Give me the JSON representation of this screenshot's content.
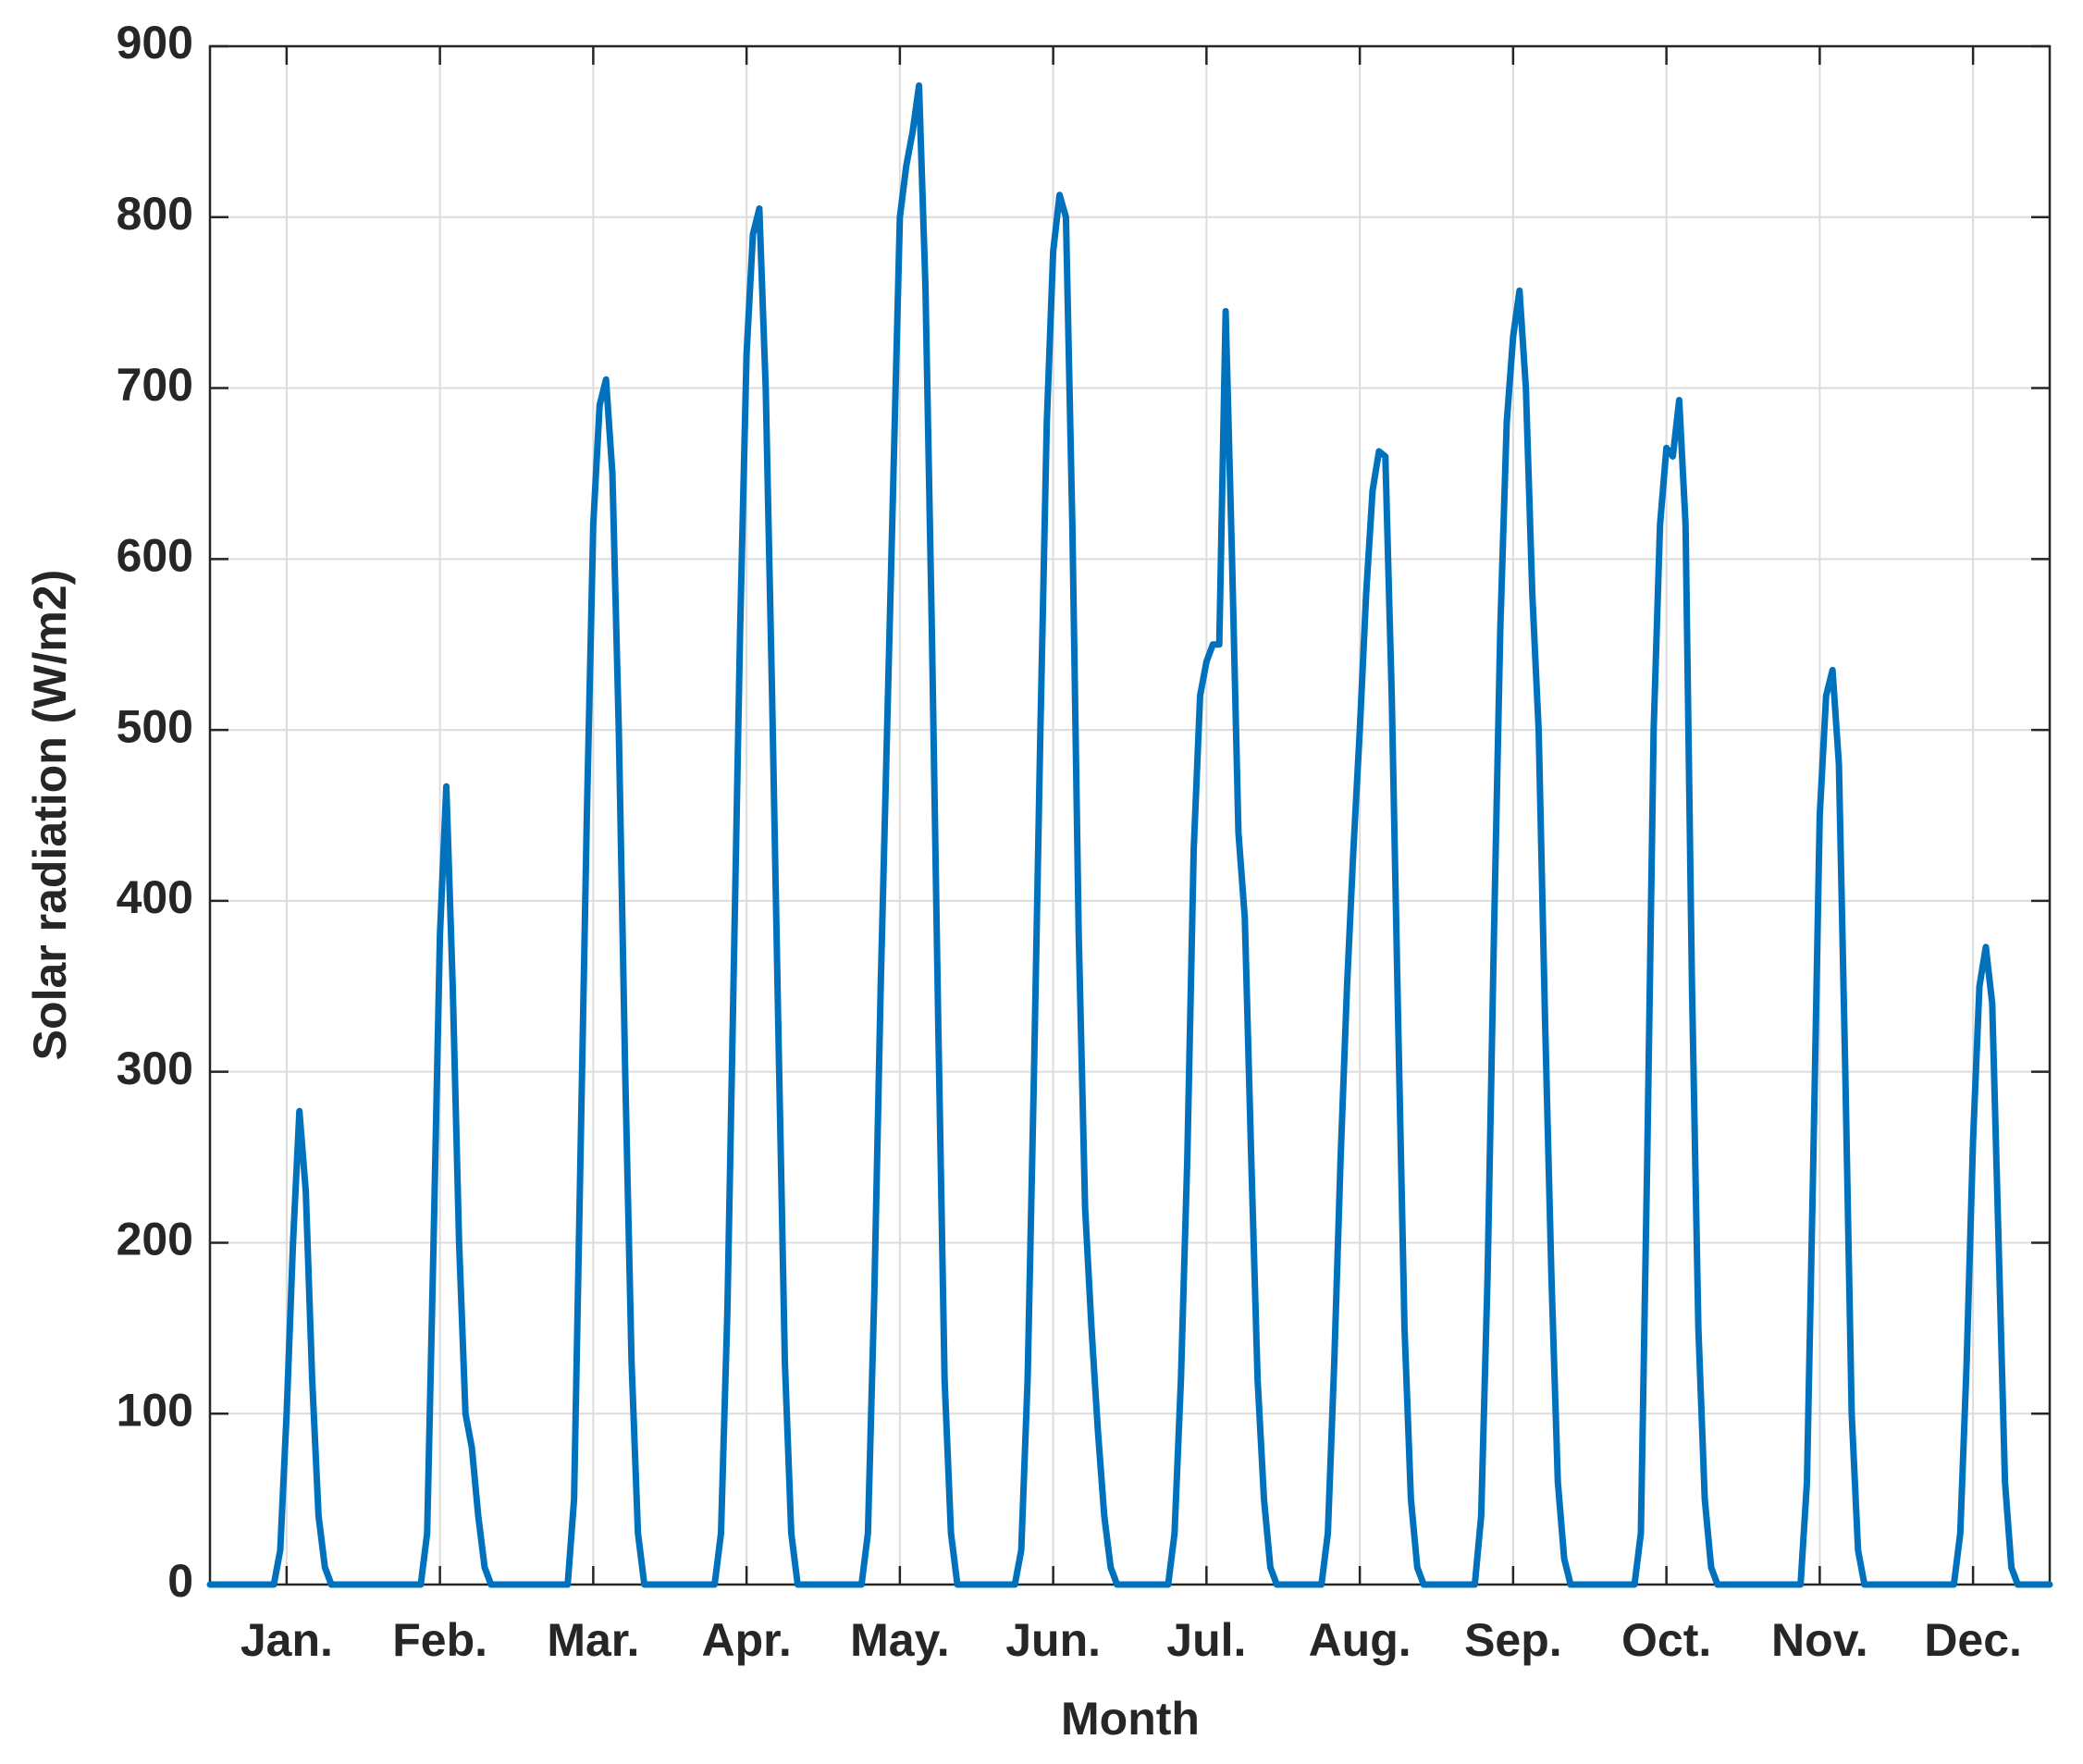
{
  "chart_data": {
    "type": "line",
    "xlabel": "Month",
    "ylabel": "Solar radiation (W/m2)",
    "color": "#0072bd",
    "grid": true,
    "xlim": [
      0,
      288
    ],
    "ylim": [
      0,
      900
    ],
    "yticks": [
      0,
      100,
      200,
      300,
      400,
      500,
      600,
      700,
      800,
      900
    ],
    "xticks": [
      {
        "value": 12,
        "label": "Jan."
      },
      {
        "value": 36,
        "label": "Feb."
      },
      {
        "value": 60,
        "label": "Mar."
      },
      {
        "value": 84,
        "label": "Apr."
      },
      {
        "value": 108,
        "label": "May."
      },
      {
        "value": 132,
        "label": "Jun."
      },
      {
        "value": 156,
        "label": "Jul."
      },
      {
        "value": 180,
        "label": "Aug."
      },
      {
        "value": 204,
        "label": "Sep."
      },
      {
        "value": 228,
        "label": "Oct."
      },
      {
        "value": 252,
        "label": "Nov."
      },
      {
        "value": 276,
        "label": "Dec."
      }
    ],
    "x": [
      0,
      10,
      11,
      12,
      13,
      14,
      15,
      16,
      17,
      18,
      19,
      33,
      34,
      35,
      36,
      37,
      38,
      39,
      40,
      41,
      42,
      43,
      44,
      56,
      57,
      58,
      59,
      60,
      61,
      62,
      63,
      64,
      65,
      66,
      67,
      68,
      79,
      80,
      81,
      82,
      83,
      84,
      85,
      86,
      87,
      88,
      89,
      90,
      91,
      92,
      102,
      103,
      104,
      105,
      106,
      107,
      108,
      109,
      110,
      111,
      112,
      113,
      114,
      115,
      116,
      117,
      126,
      127,
      128,
      129,
      130,
      131,
      132,
      133,
      134,
      135,
      136,
      137,
      138,
      139,
      140,
      141,
      142,
      150,
      151,
      152,
      153,
      154,
      155,
      156,
      157,
      158,
      159,
      160,
      161,
      162,
      163,
      164,
      165,
      166,
      167,
      174,
      175,
      176,
      177,
      178,
      179,
      180,
      181,
      182,
      183,
      184,
      185,
      186,
      187,
      188,
      189,
      190,
      198,
      199,
      200,
      201,
      202,
      203,
      204,
      205,
      206,
      207,
      208,
      209,
      210,
      211,
      212,
      213,
      223,
      224,
      225,
      226,
      227,
      228,
      229,
      230,
      231,
      232,
      233,
      234,
      235,
      236,
      249,
      250,
      251,
      252,
      253,
      254,
      255,
      256,
      257,
      258,
      259,
      273,
      274,
      275,
      276,
      277,
      278,
      279,
      280,
      281,
      282,
      283,
      288
    ],
    "values": [
      0,
      0,
      20,
      100,
      200,
      277,
      230,
      120,
      40,
      10,
      0,
      0,
      30,
      200,
      380,
      467,
      350,
      200,
      100,
      80,
      40,
      10,
      0,
      0,
      50,
      250,
      450,
      620,
      690,
      705,
      650,
      500,
      300,
      130,
      30,
      0,
      0,
      30,
      160,
      360,
      560,
      720,
      790,
      805,
      700,
      520,
      320,
      130,
      30,
      0,
      0,
      30,
      170,
      350,
      500,
      650,
      800,
      830,
      850,
      877,
      760,
      560,
      330,
      120,
      30,
      0,
      0,
      20,
      120,
      300,
      500,
      680,
      780,
      813,
      800,
      620,
      380,
      220,
      150,
      90,
      40,
      10,
      0,
      0,
      30,
      120,
      250,
      430,
      520,
      540,
      550,
      550,
      745,
      600,
      440,
      390,
      250,
      120,
      50,
      10,
      0,
      0,
      30,
      130,
      250,
      350,
      430,
      500,
      580,
      640,
      663,
      660,
      520,
      330,
      150,
      50,
      10,
      0,
      0,
      40,
      180,
      380,
      560,
      680,
      730,
      757,
      700,
      580,
      500,
      330,
      180,
      60,
      15,
      0,
      0,
      30,
      250,
      500,
      620,
      665,
      660,
      693,
      620,
      350,
      150,
      50,
      10,
      0,
      0,
      60,
      250,
      450,
      520,
      535,
      480,
      300,
      100,
      20,
      0,
      0,
      30,
      130,
      260,
      350,
      373,
      340,
      200,
      60,
      10,
      0,
      0
    ]
  }
}
